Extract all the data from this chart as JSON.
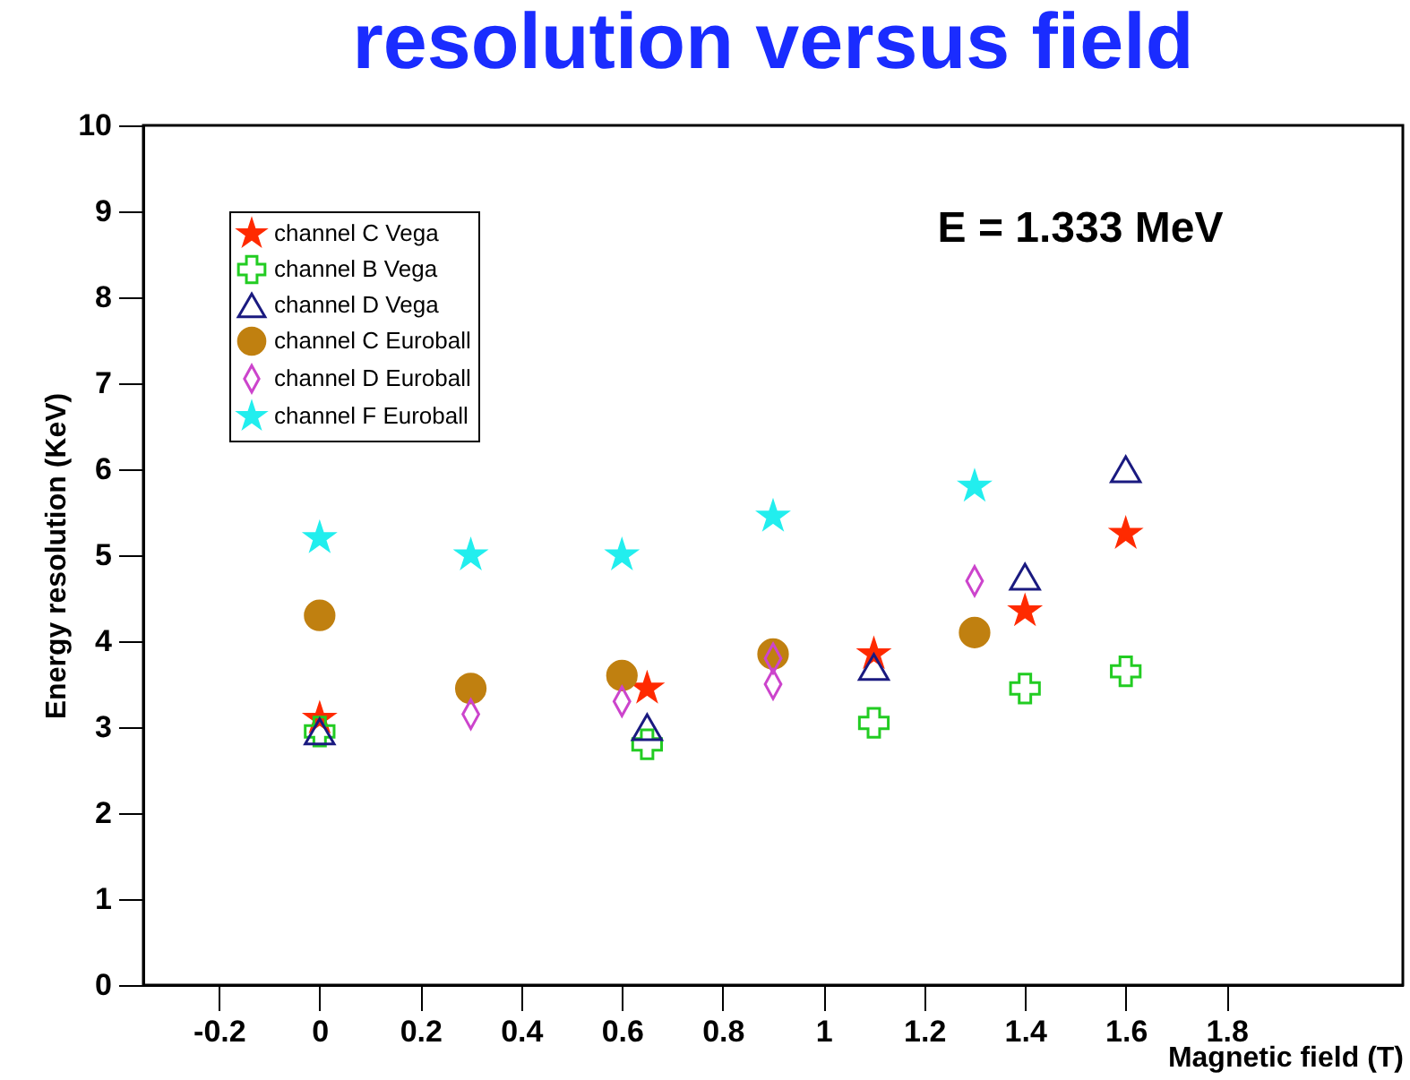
{
  "chart_data": {
    "type": "scatter",
    "title": "resolution versus field",
    "xlabel": "Magnetic field (T)",
    "ylabel": "Energy resolution (KeV)",
    "annotations": [
      "E = 1.333 MeV"
    ],
    "xlim": [
      -0.35,
      2.15
    ],
    "xticks": [
      -0.2,
      0,
      0.2,
      0.4,
      0.6,
      0.8,
      1,
      1.2,
      1.4,
      1.6,
      1.8
    ],
    "ylim": [
      0,
      10
    ],
    "yticks": [
      0,
      1,
      2,
      3,
      4,
      5,
      6,
      7,
      8,
      9,
      10
    ],
    "grid": false,
    "legend": "top left",
    "series": [
      {
        "name": "channel C Vega",
        "color": "#ff2a00",
        "marker": "star",
        "x": [
          0,
          0.65,
          1.1,
          1.4,
          1.6
        ],
        "values": [
          3.1,
          3.45,
          3.85,
          4.35,
          5.25
        ]
      },
      {
        "name": "channel B Vega",
        "color": "#22cc22",
        "marker": "cross",
        "x": [
          0,
          0.65,
          1.1,
          1.4,
          1.6
        ],
        "values": [
          2.95,
          2.8,
          3.05,
          3.45,
          3.65
        ]
      },
      {
        "name": "channel D Vega",
        "color": "#1a1a80",
        "marker": "triangle",
        "x": [
          0,
          0.65,
          1.1,
          1.4,
          1.6
        ],
        "values": [
          2.95,
          3.0,
          3.7,
          4.75,
          6.0
        ]
      },
      {
        "name": "channel C Euroball",
        "color": "#c08010",
        "marker": "circle",
        "x": [
          0,
          0.3,
          0.6,
          0.9,
          1.3
        ],
        "values": [
          4.3,
          3.45,
          3.6,
          3.85,
          4.1
        ]
      },
      {
        "name": "channel D Euroball",
        "color": "#cc44cc",
        "marker": "diamond",
        "x": [
          0.3,
          0.6,
          0.9,
          0.9,
          1.3
        ],
        "values": [
          3.15,
          3.3,
          3.5,
          3.8,
          4.7
        ]
      },
      {
        "name": "channel F Euroball",
        "color": "#22eeee",
        "marker": "star",
        "x": [
          0,
          0.3,
          0.6,
          0.9,
          1.3
        ],
        "values": [
          5.2,
          5.0,
          5.0,
          5.45,
          5.8
        ]
      }
    ]
  }
}
